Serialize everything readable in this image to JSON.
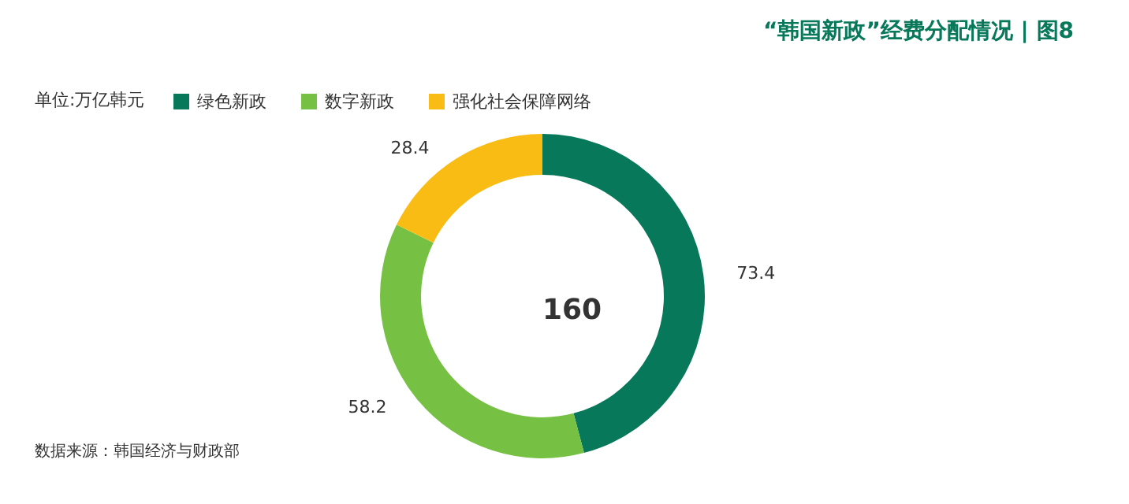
{
  "chart_data": {
    "type": "donut",
    "title": "“韩国新政”经费分配情况 | 图8",
    "categories": [
      "绿色新政",
      "数字新政",
      "强化社会保障网络"
    ],
    "values": [
      73.4,
      58.2,
      28.4
    ],
    "colors": [
      "#07785a",
      "#76c043",
      "#f9bc15"
    ],
    "data_labels": true,
    "legend": "top left",
    "annotations": [
      "单位:万亿韩元",
      "160",
      "数据来源：韩国经济与财政部"
    ]
  }
}
